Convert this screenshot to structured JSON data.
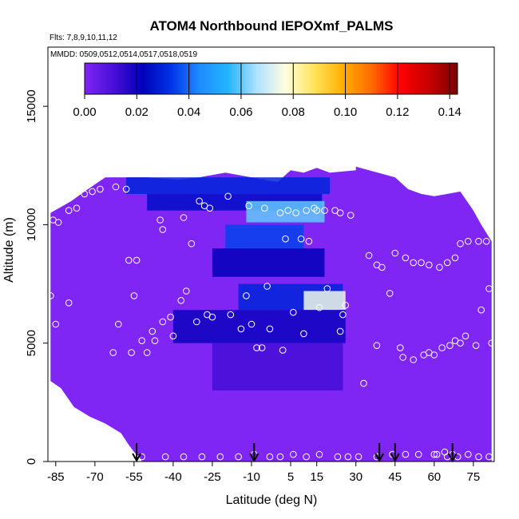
{
  "chart_data": {
    "type": "heatmap",
    "title": "ATOM4 Northbound IEPOXmf_PALMS",
    "flights_note": "Flts: 7,8,9,10,11,12",
    "dates_note": "MMDD: 0509,0512,0514,0517,0518,0519",
    "xlabel": "Latitude (deg N)",
    "ylabel": "Altitude (m)",
    "xlim": [
      -88,
      83
    ],
    "ylim": [
      0,
      17500
    ],
    "x_ticks": [
      -85,
      -70,
      -55,
      -40,
      -25,
      -10,
      5,
      15,
      30,
      45,
      60,
      75
    ],
    "y_ticks": [
      0,
      5000,
      10000,
      15000
    ],
    "colorbar": {
      "min": 0.0,
      "max": 0.143,
      "ticks": [
        "0.00",
        "0.02",
        "0.04",
        "0.06",
        "0.08",
        "0.10",
        "0.12",
        "0.14"
      ],
      "tick_values": [
        0,
        0.02,
        0.04,
        0.06,
        0.08,
        0.1,
        0.12,
        0.14
      ],
      "stops": [
        "#7F25F4",
        "#4A0FD8",
        "#0000B8",
        "#0033E6",
        "#1E8CFF",
        "#23B5FF",
        "#AEE2FF",
        "#FFFFE0",
        "#FFE35A",
        "#FFB000",
        "#FF6A00",
        "#FF0000",
        "#C80000",
        "#7A0000"
      ]
    },
    "background_color": "#7F25F4",
    "coverage": {
      "top_profile": [
        [
          -87,
          10500
        ],
        [
          -79,
          11000
        ],
        [
          -74,
          11400
        ],
        [
          -66,
          12000
        ],
        [
          -50,
          12000
        ],
        [
          -38,
          11900
        ],
        [
          -30,
          12000
        ],
        [
          -20,
          12200
        ],
        [
          -10,
          12000
        ],
        [
          0,
          11800
        ],
        [
          5,
          12300
        ],
        [
          10,
          12200
        ],
        [
          15,
          12400
        ],
        [
          20,
          12200
        ],
        [
          30,
          12300
        ],
        [
          30,
          12450
        ],
        [
          45,
          12000
        ],
        [
          50,
          11500
        ],
        [
          55,
          11300
        ],
        [
          60,
          11200
        ],
        [
          65,
          11300
        ],
        [
          70,
          11400
        ],
        [
          75,
          10600
        ],
        [
          78,
          10000
        ],
        [
          82,
          9300
        ]
      ],
      "bottom_left_profile": [
        [
          -87,
          3400
        ],
        [
          -83,
          3100
        ],
        [
          -78,
          2300
        ],
        [
          -72,
          1900
        ],
        [
          -66,
          1600
        ],
        [
          -60,
          1200
        ],
        [
          -57,
          700
        ],
        [
          -55,
          400
        ],
        [
          -53,
          200
        ],
        [
          -52,
          0
        ]
      ]
    },
    "enhanced_regions": [
      {
        "x": [
          -58,
          20
        ],
        "y": [
          11300,
          12000
        ],
        "value": 0.03
      },
      {
        "x": [
          -50,
          17
        ],
        "y": [
          10600,
          11300
        ],
        "value": 0.025
      },
      {
        "x": [
          -12,
          18
        ],
        "y": [
          10100,
          11000
        ],
        "value": 0.06
      },
      {
        "x": [
          -20,
          10
        ],
        "y": [
          9000,
          10000
        ],
        "value": 0.035
      },
      {
        "x": [
          -25,
          18
        ],
        "y": [
          7800,
          9000
        ],
        "value": 0.022
      },
      {
        "x": [
          -15,
          25
        ],
        "y": [
          6400,
          7500
        ],
        "value": 0.03
      },
      {
        "x": [
          10,
          26
        ],
        "y": [
          6400,
          7200
        ],
        "value": 0.075
      },
      {
        "x": [
          -40,
          26
        ],
        "y": [
          5000,
          6400
        ],
        "value": 0.02
      },
      {
        "x": [
          -25,
          25
        ],
        "y": [
          3000,
          5000
        ],
        "value": 0.012
      }
    ],
    "flight_points": [
      [
        -86,
        10200
      ],
      [
        -84,
        10100
      ],
      [
        -80,
        10600
      ],
      [
        -77,
        10700
      ],
      [
        -74,
        11300
      ],
      [
        -71,
        11400
      ],
      [
        -68,
        11500
      ],
      [
        -62,
        11600
      ],
      [
        -58,
        11500
      ],
      [
        -45,
        10200
      ],
      [
        -44,
        9800
      ],
      [
        -36,
        10300
      ],
      [
        -33,
        9200
      ],
      [
        -30,
        11000
      ],
      [
        -28,
        10800
      ],
      [
        -26,
        10700
      ],
      [
        -19,
        11200
      ],
      [
        -11,
        10800
      ],
      [
        -5,
        10700
      ],
      [
        1,
        10500
      ],
      [
        4,
        10600
      ],
      [
        7,
        10500
      ],
      [
        11,
        10600
      ],
      [
        14,
        10700
      ],
      [
        18,
        10600
      ],
      [
        24,
        10500
      ],
      [
        28,
        10400
      ],
      [
        -87,
        7000
      ],
      [
        -85,
        5800
      ],
      [
        -80,
        6700
      ],
      [
        -61,
        5800
      ],
      [
        -57,
        8500
      ],
      [
        -54,
        8500
      ],
      [
        -55,
        7000
      ],
      [
        -52,
        5100
      ],
      [
        -48,
        5500
      ],
      [
        -47,
        5100
      ],
      [
        -41,
        6100
      ],
      [
        -37,
        6800
      ],
      [
        -35,
        7200
      ],
      [
        -27,
        6200
      ],
      [
        -25,
        6100
      ],
      [
        -18,
        6200
      ],
      [
        -14,
        5600
      ],
      [
        -8,
        4800
      ],
      [
        -6,
        4800
      ],
      [
        -3,
        5600
      ],
      [
        2,
        4700
      ],
      [
        3,
        9400
      ],
      [
        9,
        9400
      ],
      [
        12,
        9300
      ],
      [
        15,
        10600
      ],
      [
        22,
        10600
      ],
      [
        24,
        5500
      ],
      [
        25,
        6200
      ],
      [
        26,
        6600
      ],
      [
        33,
        3300
      ],
      [
        35,
        8700
      ],
      [
        38,
        8300
      ],
      [
        40,
        8200
      ],
      [
        43,
        7100
      ],
      [
        45,
        8800
      ],
      [
        49,
        8600
      ],
      [
        52,
        8400
      ],
      [
        55,
        8400
      ],
      [
        58,
        8300
      ],
      [
        62,
        8200
      ],
      [
        65,
        8400
      ],
      [
        68,
        8600
      ],
      [
        70,
        9200
      ],
      [
        73,
        9300
      ],
      [
        77,
        9300
      ],
      [
        80,
        9300
      ],
      [
        58,
        4600
      ],
      [
        60,
        4500
      ],
      [
        63,
        4800
      ],
      [
        66,
        4900
      ],
      [
        68,
        5100
      ],
      [
        70,
        5000
      ],
      [
        72,
        5300
      ],
      [
        76,
        4900
      ],
      [
        78,
        6400
      ],
      [
        81,
        7300
      ],
      [
        82,
        5000
      ],
      [
        47,
        4800
      ],
      [
        48,
        4400
      ],
      [
        52,
        4300
      ],
      [
        56,
        4500
      ],
      [
        38,
        4900
      ],
      [
        -50,
        4600
      ],
      [
        -44,
        5900
      ],
      [
        -31,
        5900
      ],
      [
        -10,
        5800
      ],
      [
        -4,
        7400
      ],
      [
        6,
        6300
      ],
      [
        10,
        5400
      ],
      [
        16,
        6500
      ],
      [
        -12,
        7000
      ],
      [
        19,
        7300
      ],
      [
        -63,
        4600
      ],
      [
        -56,
        4600
      ],
      [
        -40,
        5300
      ],
      [
        -58,
        200
      ],
      [
        -52,
        200
      ],
      [
        -43,
        200
      ],
      [
        -36,
        200
      ],
      [
        -29,
        200
      ],
      [
        -22,
        200
      ],
      [
        -15,
        200
      ],
      [
        -9,
        300
      ],
      [
        -3,
        200
      ],
      [
        1,
        200
      ],
      [
        6,
        300
      ],
      [
        11,
        200
      ],
      [
        16,
        300
      ],
      [
        23,
        200
      ],
      [
        27,
        200
      ],
      [
        31,
        200
      ],
      [
        38,
        200
      ],
      [
        44,
        300
      ],
      [
        49,
        300
      ],
      [
        54,
        300
      ],
      [
        60,
        300
      ],
      [
        64,
        400
      ],
      [
        67,
        300
      ],
      [
        73,
        300
      ],
      [
        77,
        200
      ],
      [
        81,
        200
      ],
      [
        61,
        300
      ],
      [
        65,
        200
      ],
      [
        69,
        200
      ]
    ],
    "arrows_x": [
      -54,
      -9,
      39,
      45,
      67
    ]
  }
}
